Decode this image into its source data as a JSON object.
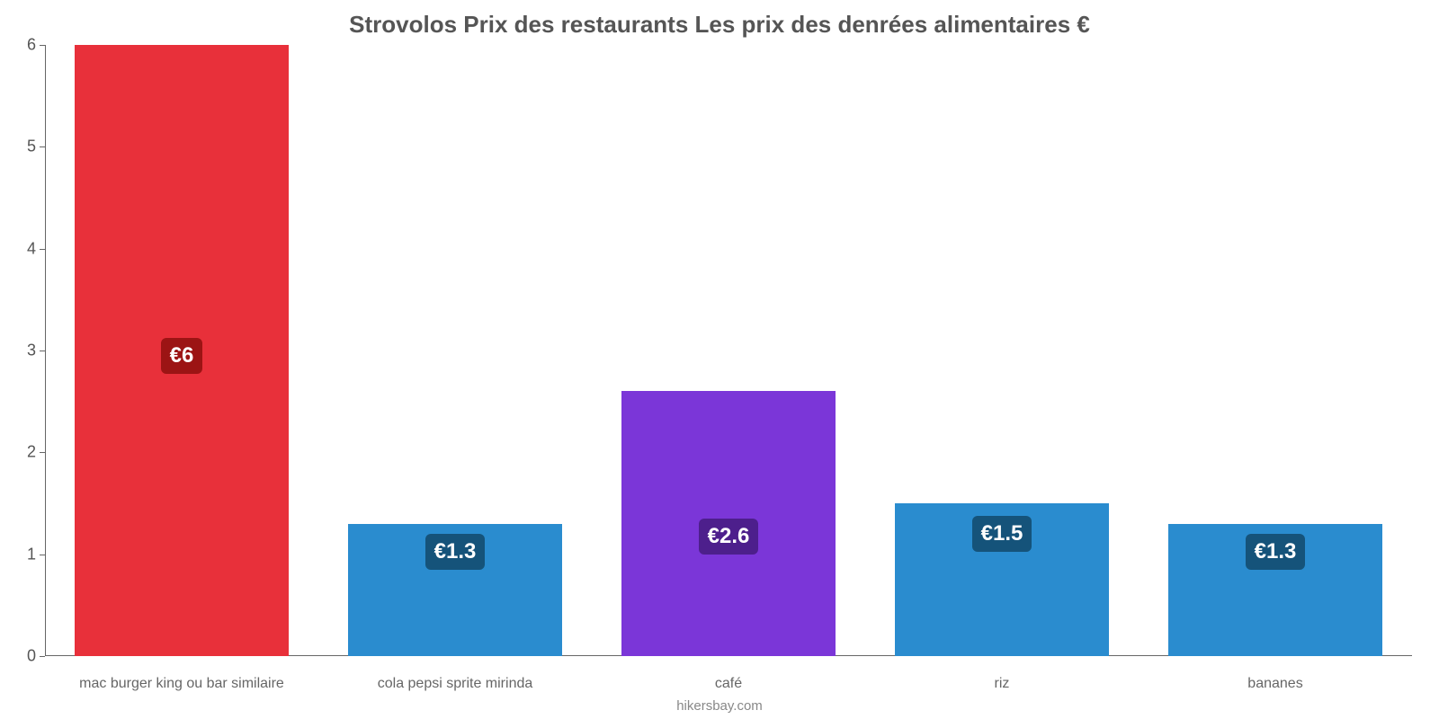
{
  "chart": {
    "type": "bar",
    "title": "Strovolos Prix des restaurants Les prix des denrées alimentaires €",
    "title_fontsize": 26,
    "title_color": "#555555",
    "background_color": "#ffffff",
    "axis_color": "#666666",
    "tick_label_color": "#555555",
    "tick_fontsize": 18,
    "xlabel_fontsize": 16,
    "ylim": [
      0,
      6
    ],
    "yticks": [
      0,
      1,
      2,
      3,
      4,
      5,
      6
    ],
    "bar_width": 0.78,
    "categories": [
      "mac burger king ou bar similaire",
      "cola pepsi sprite mirinda",
      "café",
      "riz",
      "bananes"
    ],
    "values": [
      6,
      1.3,
      2.6,
      1.5,
      1.3
    ],
    "value_labels": [
      "€6",
      "€1.3",
      "€2.6",
      "€1.5",
      "€1.3"
    ],
    "bar_colors": [
      "#e8303a",
      "#2a8ccf",
      "#7b36d8",
      "#2a8ccf",
      "#2a8ccf"
    ],
    "label_bg_colors": [
      "#9c1414",
      "#15537a",
      "#4d1f8c",
      "#15537a",
      "#15537a"
    ],
    "label_fontsize": 24,
    "label_text_color": "#ffffff",
    "attribution": "hikersbay.com",
    "attribution_fontsize": 15,
    "attribution_color": "#888888",
    "xlabel_color": "#666666"
  }
}
